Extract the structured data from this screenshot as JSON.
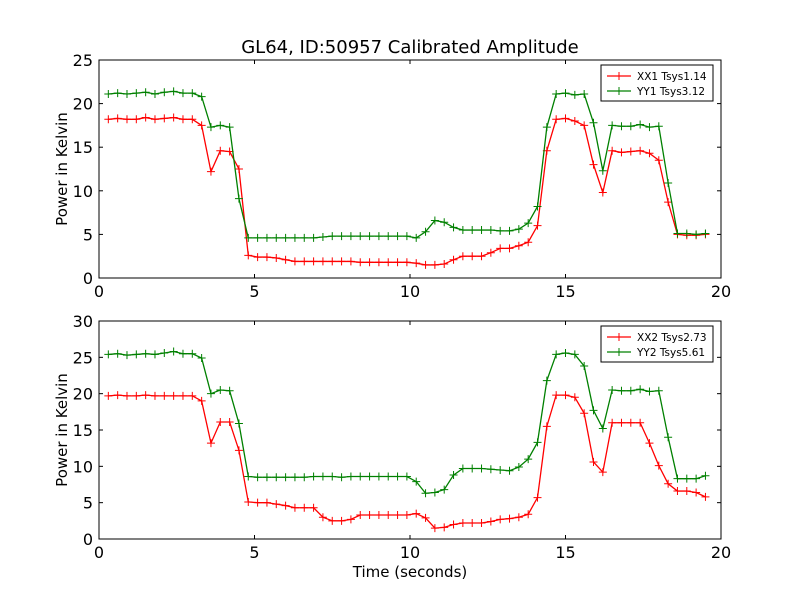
{
  "figure": {
    "title": "GL64, ID:50957 Calibrated Amplitude"
  },
  "chart_data": [
    {
      "type": "line",
      "title": "GL64, ID:50957 Calibrated Amplitude",
      "xlabel": "",
      "ylabel": "Power in Kelvin",
      "xlim": [
        0,
        20
      ],
      "ylim": [
        0,
        25
      ],
      "xticks": [
        0,
        5,
        10,
        15,
        20
      ],
      "yticks": [
        0,
        5,
        10,
        15,
        20,
        25
      ],
      "grid": false,
      "legend": "top-right",
      "x": [
        0.3,
        0.6,
        0.9,
        1.2,
        1.5,
        1.8,
        2.1,
        2.4,
        2.7,
        3.0,
        3.3,
        3.6,
        3.9,
        4.2,
        4.5,
        4.8,
        5.1,
        5.4,
        5.7,
        6.0,
        6.3,
        6.6,
        6.9,
        7.2,
        7.5,
        7.8,
        8.1,
        8.4,
        8.7,
        9.0,
        9.3,
        9.6,
        9.9,
        10.2,
        10.5,
        10.8,
        11.1,
        11.4,
        11.7,
        12.0,
        12.3,
        12.6,
        12.9,
        13.2,
        13.5,
        13.8,
        14.1,
        14.4,
        14.7,
        15.0,
        15.3,
        15.6,
        15.9,
        16.2,
        16.5,
        16.8,
        17.1,
        17.4,
        17.7,
        18.0,
        18.3,
        18.6,
        18.9,
        19.2,
        19.5
      ],
      "series": [
        {
          "name": "XX1 Tsys1.14",
          "color": "#ff0000",
          "values": [
            18.2,
            18.3,
            18.2,
            18.2,
            18.4,
            18.2,
            18.3,
            18.4,
            18.2,
            18.2,
            17.5,
            12.2,
            14.6,
            14.5,
            12.5,
            2.6,
            2.4,
            2.4,
            2.3,
            2.1,
            1.9,
            1.9,
            1.9,
            1.9,
            1.9,
            1.9,
            1.9,
            1.8,
            1.8,
            1.8,
            1.8,
            1.8,
            1.8,
            1.7,
            1.5,
            1.5,
            1.6,
            2.1,
            2.5,
            2.5,
            2.5,
            2.9,
            3.4,
            3.4,
            3.7,
            4.1,
            6.0,
            14.6,
            18.2,
            18.3,
            18.0,
            17.5,
            13.0,
            9.8,
            14.6,
            14.4,
            14.5,
            14.6,
            14.3,
            13.5,
            8.7,
            5.0,
            4.9,
            4.9,
            5.0
          ]
        },
        {
          "name": "YY1 Tsys3.12",
          "color": "#008000",
          "values": [
            21.1,
            21.2,
            21.1,
            21.2,
            21.3,
            21.1,
            21.3,
            21.4,
            21.2,
            21.2,
            20.8,
            17.3,
            17.5,
            17.3,
            9.1,
            4.6,
            4.6,
            4.6,
            4.6,
            4.6,
            4.6,
            4.6,
            4.6,
            4.7,
            4.8,
            4.8,
            4.8,
            4.8,
            4.8,
            4.8,
            4.8,
            4.8,
            4.8,
            4.6,
            5.3,
            6.6,
            6.4,
            5.8,
            5.5,
            5.5,
            5.5,
            5.5,
            5.4,
            5.4,
            5.6,
            6.3,
            8.2,
            17.3,
            21.1,
            21.2,
            21.0,
            21.1,
            17.8,
            12.3,
            17.5,
            17.4,
            17.4,
            17.6,
            17.3,
            17.4,
            10.9,
            5.1,
            5.1,
            5.0,
            5.1
          ]
        }
      ]
    },
    {
      "type": "line",
      "title": "",
      "xlabel": "Time (seconds)",
      "ylabel": "Power in Kelvin",
      "xlim": [
        0,
        20
      ],
      "ylim": [
        0,
        30
      ],
      "xticks": [
        0,
        5,
        10,
        15,
        20
      ],
      "yticks": [
        0,
        5,
        10,
        15,
        20,
        25,
        30
      ],
      "grid": false,
      "legend": "top-right",
      "x": [
        0.3,
        0.6,
        0.9,
        1.2,
        1.5,
        1.8,
        2.1,
        2.4,
        2.7,
        3.0,
        3.3,
        3.6,
        3.9,
        4.2,
        4.5,
        4.8,
        5.1,
        5.4,
        5.7,
        6.0,
        6.3,
        6.6,
        6.9,
        7.2,
        7.5,
        7.8,
        8.1,
        8.4,
        8.7,
        9.0,
        9.3,
        9.6,
        9.9,
        10.2,
        10.5,
        10.8,
        11.1,
        11.4,
        11.7,
        12.0,
        12.3,
        12.6,
        12.9,
        13.2,
        13.5,
        13.8,
        14.1,
        14.4,
        14.7,
        15.0,
        15.3,
        15.6,
        15.9,
        16.2,
        16.5,
        16.8,
        17.1,
        17.4,
        17.7,
        18.0,
        18.3,
        18.6,
        18.9,
        19.2,
        19.5
      ],
      "series": [
        {
          "name": "XX2 Tsys2.73",
          "color": "#ff0000",
          "values": [
            19.7,
            19.8,
            19.7,
            19.7,
            19.8,
            19.7,
            19.7,
            19.7,
            19.7,
            19.7,
            19.0,
            13.2,
            16.1,
            16.1,
            12.2,
            5.1,
            5.0,
            5.0,
            4.8,
            4.6,
            4.3,
            4.3,
            4.3,
            3.0,
            2.5,
            2.5,
            2.7,
            3.3,
            3.3,
            3.3,
            3.3,
            3.3,
            3.3,
            3.5,
            2.9,
            1.5,
            1.6,
            2.0,
            2.2,
            2.2,
            2.2,
            2.4,
            2.7,
            2.8,
            3.0,
            3.4,
            5.7,
            15.5,
            19.8,
            19.8,
            19.5,
            17.3,
            10.6,
            9.2,
            16.0,
            16.0,
            16.0,
            16.0,
            13.2,
            10.1,
            7.6,
            6.6,
            6.6,
            6.4,
            5.8
          ]
        },
        {
          "name": "YY2 Tsys5.61",
          "color": "#008000",
          "values": [
            25.4,
            25.5,
            25.3,
            25.4,
            25.5,
            25.4,
            25.6,
            25.8,
            25.5,
            25.5,
            24.9,
            20.0,
            20.5,
            20.4,
            15.9,
            8.6,
            8.5,
            8.5,
            8.5,
            8.5,
            8.5,
            8.5,
            8.6,
            8.6,
            8.6,
            8.5,
            8.6,
            8.6,
            8.6,
            8.6,
            8.6,
            8.6,
            8.6,
            7.9,
            6.3,
            6.4,
            6.8,
            8.8,
            9.7,
            9.7,
            9.7,
            9.6,
            9.5,
            9.4,
            9.9,
            11.0,
            13.3,
            21.8,
            25.4,
            25.6,
            25.4,
            23.8,
            17.7,
            15.2,
            20.5,
            20.4,
            20.4,
            20.6,
            20.3,
            20.4,
            14.0,
            8.3,
            8.3,
            8.3,
            8.7
          ]
        }
      ]
    }
  ]
}
